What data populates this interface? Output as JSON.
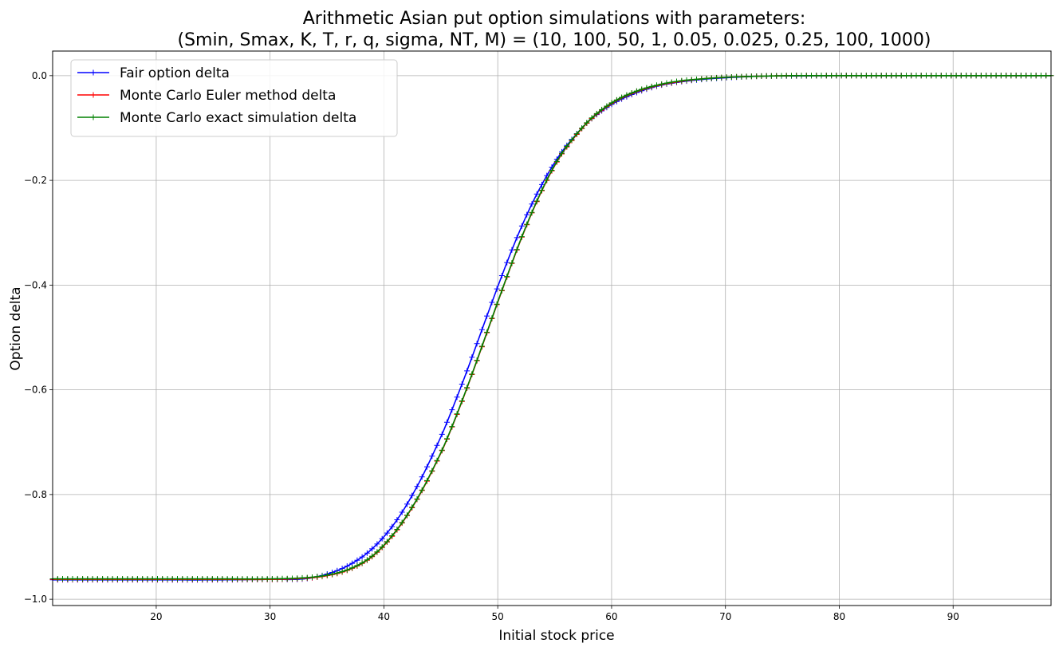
{
  "chart_data": {
    "type": "line",
    "title_line1": "Arithmetic Asian put option simulations with parameters:",
    "title_line2": "(Smin, Smax, K, T, r, q, sigma, NT, M) = (10, 100, 50, 1, 0.05, 0.025, 0.25, 100, 1000)",
    "xlabel": "Initial stock price",
    "ylabel": "Option delta",
    "xlim": [
      10.9,
      98.6
    ],
    "ylim": [
      -1.012,
      0.047
    ],
    "xticks": [
      20,
      30,
      40,
      50,
      60,
      70,
      80,
      90
    ],
    "xtick_labels": [
      "20",
      "30",
      "40",
      "50",
      "60",
      "70",
      "80",
      "90"
    ],
    "yticks": [
      0.0,
      -0.2,
      -0.4,
      -0.6,
      -0.8,
      -1.0
    ],
    "ytick_labels": [
      "0.0",
      "−0.2",
      "−0.4",
      "−0.6",
      "−0.8",
      "−1.0"
    ],
    "grid": true,
    "legend_position": "top-left",
    "marker": "+",
    "x": [
      11,
      15,
      20,
      25,
      30,
      33,
      35,
      37,
      39,
      41,
      43,
      45,
      46,
      47,
      48,
      49,
      50,
      51,
      52,
      53,
      54,
      55,
      56,
      58,
      60,
      62,
      64,
      66,
      68,
      70,
      73,
      76,
      80,
      85,
      90,
      95,
      98.6
    ],
    "series": [
      {
        "name": "Fair option delta",
        "color": "#0000ff",
        "values": [
          -0.963,
          -0.963,
          -0.963,
          -0.963,
          -0.962,
          -0.961,
          -0.952,
          -0.934,
          -0.903,
          -0.853,
          -0.781,
          -0.69,
          -0.637,
          -0.581,
          -0.522,
          -0.462,
          -0.403,
          -0.346,
          -0.293,
          -0.245,
          -0.203,
          -0.166,
          -0.135,
          -0.087,
          -0.055,
          -0.034,
          -0.02,
          -0.012,
          -0.007,
          -0.004,
          -0.001,
          -0.0005,
          0.0,
          0.0,
          0.0,
          0.0,
          0.0
        ]
      },
      {
        "name": "Monte Carlo Euler method delta",
        "color": "#ff0000",
        "values": [
          -0.962,
          -0.962,
          -0.962,
          -0.962,
          -0.962,
          -0.96,
          -0.955,
          -0.943,
          -0.918,
          -0.872,
          -0.806,
          -0.721,
          -0.67,
          -0.614,
          -0.555,
          -0.494,
          -0.433,
          -0.373,
          -0.315,
          -0.262,
          -0.214,
          -0.172,
          -0.138,
          -0.087,
          -0.053,
          -0.032,
          -0.019,
          -0.011,
          -0.006,
          -0.003,
          -0.001,
          0.0,
          0.0,
          0.0,
          0.0,
          0.0,
          0.0
        ]
      },
      {
        "name": "Monte Carlo exact simulation delta",
        "color": "#008000",
        "values": [
          -0.961,
          -0.961,
          -0.961,
          -0.961,
          -0.961,
          -0.959,
          -0.954,
          -0.942,
          -0.917,
          -0.871,
          -0.805,
          -0.72,
          -0.669,
          -0.613,
          -0.554,
          -0.493,
          -0.432,
          -0.372,
          -0.314,
          -0.261,
          -0.213,
          -0.171,
          -0.137,
          -0.086,
          -0.052,
          -0.031,
          -0.018,
          -0.01,
          -0.006,
          -0.003,
          -0.001,
          0.0,
          0.0,
          0.0,
          0.0,
          0.0,
          0.0
        ]
      }
    ]
  }
}
